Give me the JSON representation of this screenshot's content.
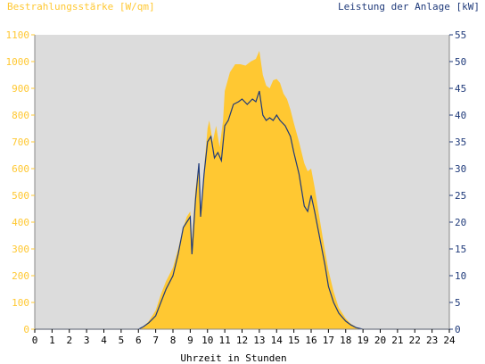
{
  "chart_data": {
    "type": "area",
    "left_axis_title": "Bestrahlungsstärke [W/qm]",
    "right_axis_title": "Leistung der Anlage [kW]",
    "xlabel": "Uhrzeit in Stunden",
    "xlim": [
      0,
      24
    ],
    "ylim_left": [
      0,
      1100
    ],
    "ylim_right": [
      0,
      55
    ],
    "x_ticks": [
      "0",
      "1",
      "2",
      "3",
      "4",
      "5",
      "6",
      "7",
      "8",
      "9",
      "10",
      "11",
      "12",
      "13",
      "14",
      "15",
      "16",
      "17",
      "18",
      "19",
      "20",
      "21",
      "22",
      "23",
      "24"
    ],
    "left_ticks": [
      "0",
      "100",
      "200",
      "300",
      "400",
      "500",
      "600",
      "700",
      "800",
      "900",
      "1000",
      "1100"
    ],
    "right_ticks": [
      "0",
      "5",
      "10",
      "15",
      "20",
      "25",
      "30",
      "35",
      "40",
      "45",
      "50",
      "55"
    ],
    "series": [
      {
        "axis": "left",
        "color": "#ffc832",
        "points": [
          [
            0,
            0
          ],
          [
            6.0,
            0
          ],
          [
            6.3,
            10
          ],
          [
            6.6,
            30
          ],
          [
            7.0,
            70
          ],
          [
            7.3,
            130
          ],
          [
            7.6,
            180
          ],
          [
            8.0,
            230
          ],
          [
            8.3,
            300
          ],
          [
            8.6,
            380
          ],
          [
            8.8,
            420
          ],
          [
            9.0,
            440
          ],
          [
            9.1,
            330
          ],
          [
            9.3,
            520
          ],
          [
            9.5,
            620
          ],
          [
            9.6,
            420
          ],
          [
            9.8,
            600
          ],
          [
            10.0,
            750
          ],
          [
            10.1,
            780
          ],
          [
            10.3,
            700
          ],
          [
            10.5,
            760
          ],
          [
            10.7,
            680
          ],
          [
            10.9,
            780
          ],
          [
            11.0,
            890
          ],
          [
            11.3,
            960
          ],
          [
            11.6,
            990
          ],
          [
            11.9,
            990
          ],
          [
            12.2,
            985
          ],
          [
            12.5,
            1000
          ],
          [
            12.8,
            1010
          ],
          [
            13.0,
            1040
          ],
          [
            13.2,
            950
          ],
          [
            13.4,
            910
          ],
          [
            13.6,
            900
          ],
          [
            13.8,
            930
          ],
          [
            14.0,
            935
          ],
          [
            14.2,
            920
          ],
          [
            14.4,
            880
          ],
          [
            14.6,
            860
          ],
          [
            14.8,
            820
          ],
          [
            15.0,
            770
          ],
          [
            15.3,
            700
          ],
          [
            15.6,
            620
          ],
          [
            15.8,
            590
          ],
          [
            16.0,
            600
          ],
          [
            16.2,
            530
          ],
          [
            16.4,
            450
          ],
          [
            16.7,
            330
          ],
          [
            17.0,
            220
          ],
          [
            17.3,
            140
          ],
          [
            17.6,
            80
          ],
          [
            18.0,
            40
          ],
          [
            18.3,
            20
          ],
          [
            18.6,
            8
          ],
          [
            18.9,
            2
          ],
          [
            19.0,
            0
          ],
          [
            24,
            0
          ]
        ]
      },
      {
        "axis": "right",
        "color": "#1f3a7a",
        "points": [
          [
            0,
            0
          ],
          [
            6.0,
            0
          ],
          [
            6.3,
            0.5
          ],
          [
            6.6,
            1.2
          ],
          [
            7.0,
            2.5
          ],
          [
            7.3,
            5
          ],
          [
            7.6,
            7.5
          ],
          [
            8.0,
            10
          ],
          [
            8.3,
            14
          ],
          [
            8.6,
            19
          ],
          [
            8.8,
            20
          ],
          [
            9.0,
            21
          ],
          [
            9.1,
            14
          ],
          [
            9.3,
            24
          ],
          [
            9.5,
            31
          ],
          [
            9.6,
            21
          ],
          [
            9.8,
            29
          ],
          [
            10.0,
            35
          ],
          [
            10.2,
            36
          ],
          [
            10.4,
            32
          ],
          [
            10.6,
            33
          ],
          [
            10.8,
            31.5
          ],
          [
            11.0,
            38
          ],
          [
            11.2,
            39
          ],
          [
            11.5,
            42
          ],
          [
            11.8,
            42.5
          ],
          [
            12.0,
            43
          ],
          [
            12.3,
            42
          ],
          [
            12.6,
            43
          ],
          [
            12.8,
            42.5
          ],
          [
            13.0,
            44.5
          ],
          [
            13.2,
            40
          ],
          [
            13.4,
            39
          ],
          [
            13.6,
            39.5
          ],
          [
            13.8,
            39
          ],
          [
            14.0,
            40
          ],
          [
            14.2,
            39
          ],
          [
            14.5,
            38
          ],
          [
            14.8,
            36
          ],
          [
            15.0,
            33
          ],
          [
            15.3,
            29
          ],
          [
            15.6,
            23
          ],
          [
            15.8,
            22
          ],
          [
            16.0,
            25
          ],
          [
            16.2,
            22
          ],
          [
            16.5,
            17
          ],
          [
            16.8,
            12
          ],
          [
            17.0,
            8
          ],
          [
            17.3,
            5
          ],
          [
            17.6,
            3
          ],
          [
            18.0,
            1.5
          ],
          [
            18.3,
            0.8
          ],
          [
            18.6,
            0.3
          ],
          [
            19.0,
            0
          ],
          [
            24,
            0
          ]
        ]
      }
    ],
    "plot_background": "#dcdcdc",
    "left_axis_color": "#ffc832",
    "right_axis_color": "#1f3a7a"
  }
}
